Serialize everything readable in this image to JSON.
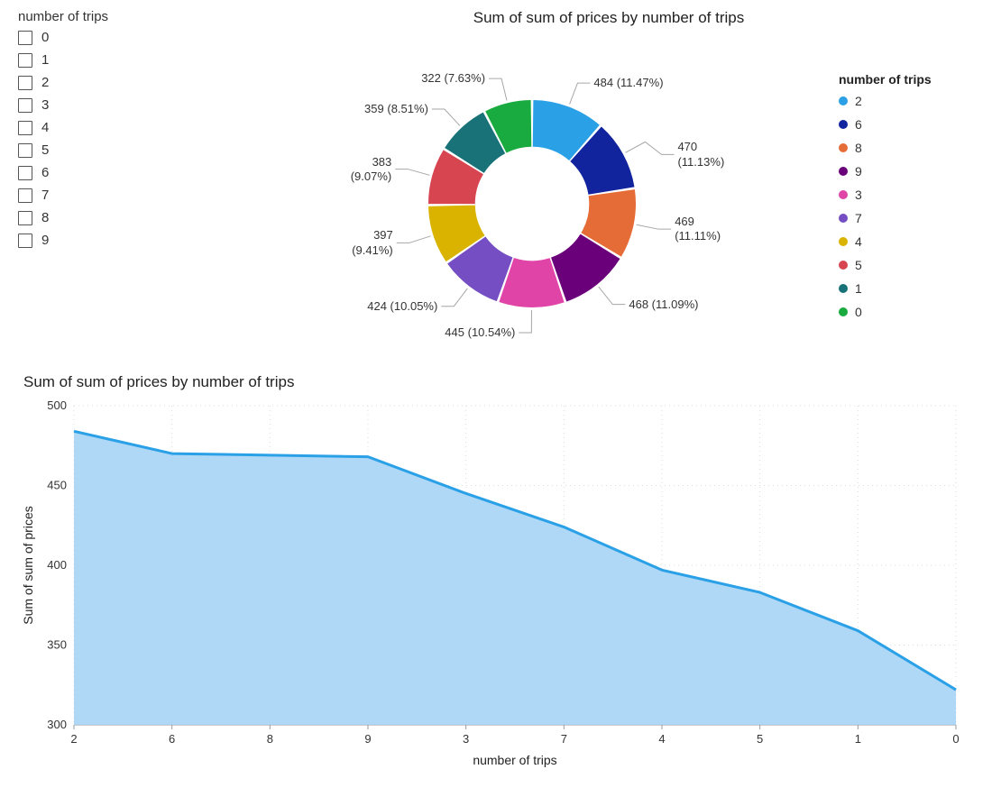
{
  "slicer": {
    "title": "number of trips",
    "items": [
      "0",
      "1",
      "2",
      "3",
      "4",
      "5",
      "6",
      "7",
      "8",
      "9"
    ]
  },
  "donut": {
    "title": "Sum of sum of prices by number of trips",
    "legend_title": "number of trips",
    "type": "donut",
    "inner_radius_ratio": 0.55,
    "title_fontsize": 17,
    "label_fontsize": 13,
    "background_color": "#ffffff",
    "slices": [
      {
        "label": "2",
        "value": 484,
        "pct": "11.47%",
        "color": "#2aa0e7"
      },
      {
        "label": "6",
        "value": 470,
        "pct": "11.13%",
        "color": "#12239e"
      },
      {
        "label": "8",
        "value": 469,
        "pct": "11.11%",
        "color": "#e66c37"
      },
      {
        "label": "9",
        "value": 468,
        "pct": "11.09%",
        "color": "#6b007b"
      },
      {
        "label": "3",
        "value": 445,
        "pct": "10.54%",
        "color": "#e044a7"
      },
      {
        "label": "7",
        "value": 424,
        "pct": "10.05%",
        "color": "#744ec2"
      },
      {
        "label": "4",
        "value": 397,
        "pct": "9.41%",
        "color": "#d9b300"
      },
      {
        "label": "5",
        "value": 383,
        "pct": "9.07%",
        "color": "#d64550"
      },
      {
        "label": "1",
        "value": 359,
        "pct": "8.51%",
        "color": "#197278"
      },
      {
        "label": "0",
        "value": 322,
        "pct": "7.63%",
        "color": "#1aab40"
      }
    ]
  },
  "area": {
    "title": "Sum of sum of prices by number of trips",
    "type": "area",
    "x_label": "number of trips",
    "y_label": "Sum of sum of prices",
    "ylim": [
      300,
      500
    ],
    "ytick_step": 50,
    "categories": [
      "2",
      "6",
      "8",
      "9",
      "3",
      "7",
      "4",
      "5",
      "1",
      "0"
    ],
    "values": [
      484,
      470,
      469,
      468,
      445,
      424,
      397,
      383,
      359,
      322
    ],
    "line_color": "#2aa0e7",
    "fill_color": "#a6d3f5",
    "fill_opacity": 0.9,
    "line_width": 3,
    "grid_color": "#dcdcdc",
    "axis_color": "#9a9a9a",
    "text_color": "#333333",
    "label_fontsize": 13
  }
}
